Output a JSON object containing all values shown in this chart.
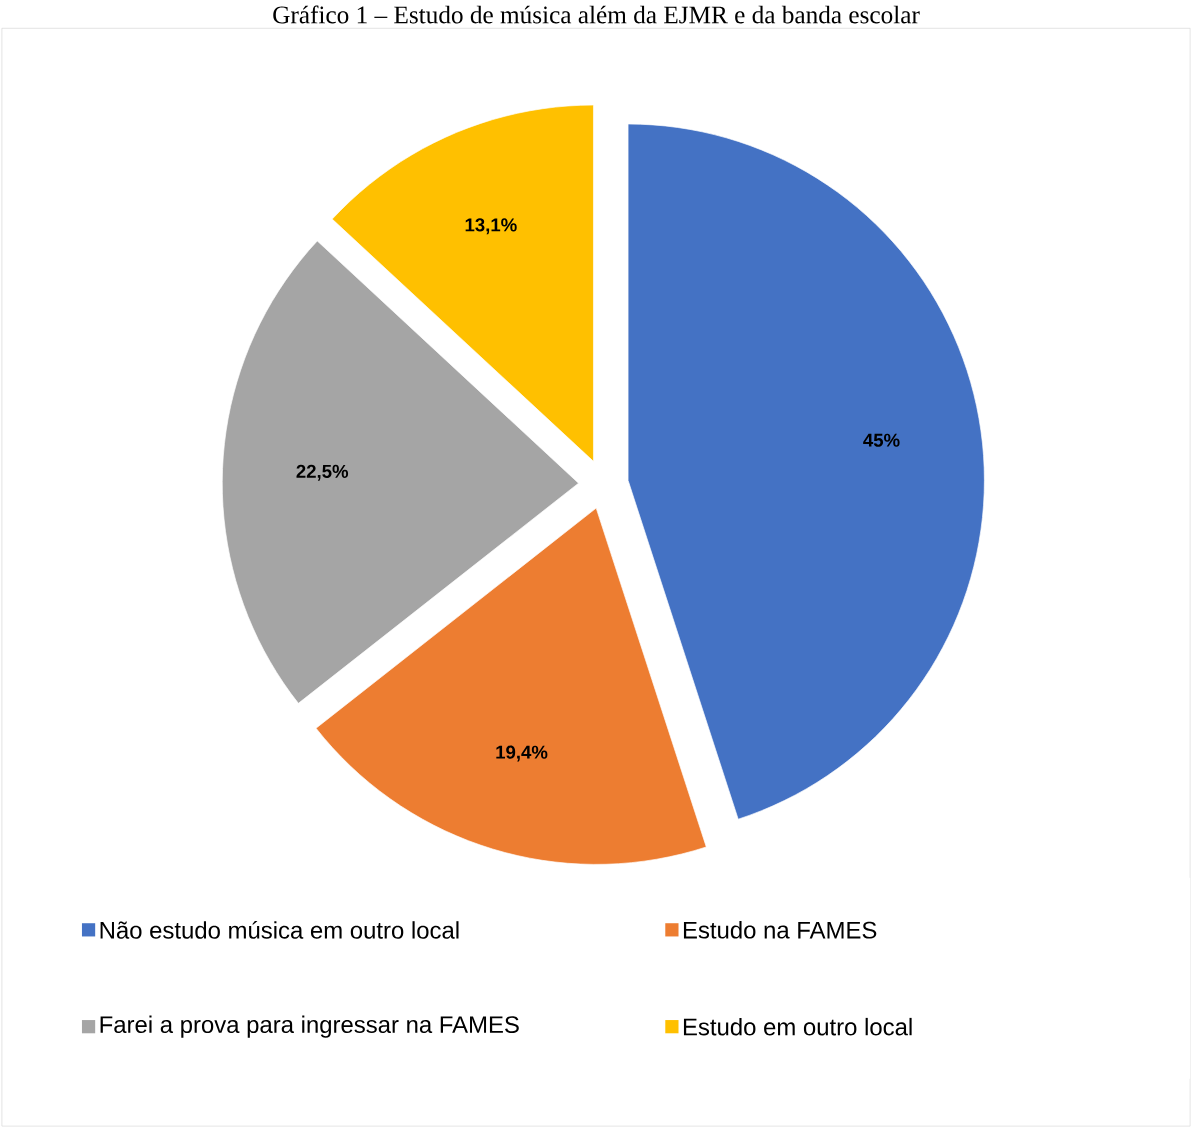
{
  "chart_data": {
    "type": "pie",
    "title": "Gráfico 1 – Estudo de música além da EJMR e da banda escolar",
    "categories": [
      "Não estudo música em outro local",
      "Estudo na FAMES",
      "Farei a prova para ingressar na FAMES",
      "Estudo em outro local"
    ],
    "values": [
      45,
      19.4,
      22.5,
      13.1
    ],
    "value_labels": [
      "45%",
      "19,4%",
      "22,5%",
      "13,1%"
    ],
    "colors": [
      "#4472c4",
      "#ed7d31",
      "#a5a5a5",
      "#ffc000"
    ],
    "legend": "bottom"
  }
}
